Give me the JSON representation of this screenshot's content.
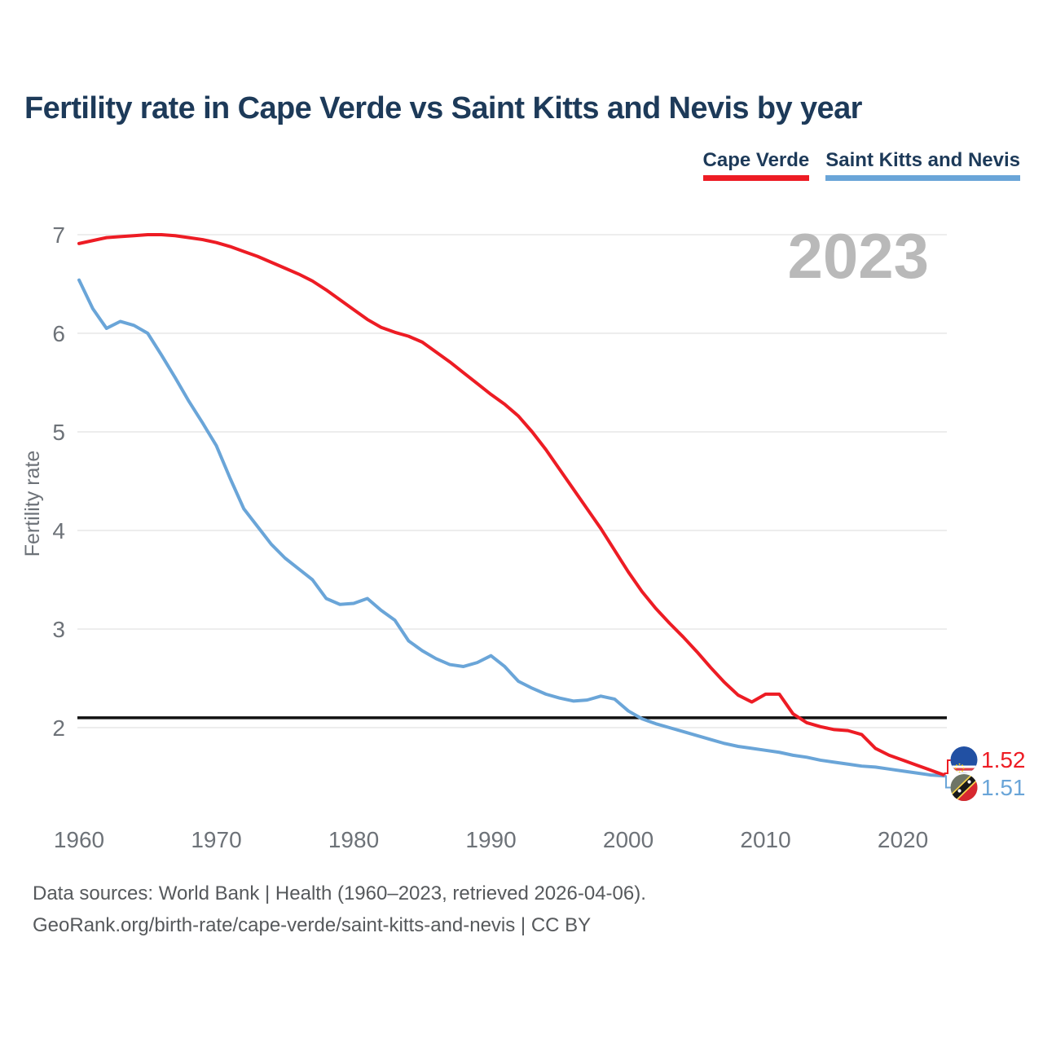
{
  "title": "Fertility rate in Cape Verde vs Saint Kitts and Nevis by year",
  "watermark": "2023",
  "legend": [
    {
      "label": "Cape Verde",
      "color": "#ed1c24"
    },
    {
      "label": "Saint Kitts and Nevis",
      "color": "#6aa5d8"
    }
  ],
  "y_axis": {
    "label": "Fertility rate",
    "ticks": [
      2,
      3,
      4,
      5,
      6,
      7
    ]
  },
  "x_axis": {
    "ticks": [
      1960,
      1970,
      1980,
      1990,
      2000,
      2010,
      2020
    ]
  },
  "reference_line": {
    "value": 2.1,
    "color": "#111111"
  },
  "end_labels": [
    {
      "value": "1.52",
      "color": "#ed1c24",
      "flag": "cape-verde-flag"
    },
    {
      "value": "1.51",
      "color": "#6aa5d8",
      "flag": "saint-kitts-nevis-flag"
    }
  ],
  "source": {
    "line1": "Data sources: World Bank | Health (1960–2023, retrieved 2026-04-06).",
    "line2": "GeoRank.org/birth-rate/cape-verde/saint-kitts-and-nevis | CC BY"
  },
  "chart_data": {
    "type": "line",
    "title": "Fertility rate in Cape Verde vs Saint Kitts and Nevis by year",
    "xlabel": "",
    "ylabel": "Fertility rate",
    "xlim": [
      1960,
      2023
    ],
    "ylim": [
      1.4,
      7.05
    ],
    "grid": "horizontal",
    "legend_position": "top-right",
    "x": [
      1960,
      1961,
      1962,
      1963,
      1964,
      1965,
      1966,
      1967,
      1968,
      1969,
      1970,
      1971,
      1972,
      1973,
      1974,
      1975,
      1976,
      1977,
      1978,
      1979,
      1980,
      1981,
      1982,
      1983,
      1984,
      1985,
      1986,
      1987,
      1988,
      1989,
      1990,
      1991,
      1992,
      1993,
      1994,
      1995,
      1996,
      1997,
      1998,
      1999,
      2000,
      2001,
      2002,
      2003,
      2004,
      2005,
      2006,
      2007,
      2008,
      2009,
      2010,
      2011,
      2012,
      2013,
      2014,
      2015,
      2016,
      2017,
      2018,
      2019,
      2020,
      2021,
      2022,
      2023
    ],
    "series": [
      {
        "name": "Cape Verde",
        "color": "#ed1c24",
        "values": [
          6.91,
          6.94,
          6.97,
          6.98,
          6.99,
          7.0,
          7.0,
          6.99,
          6.97,
          6.95,
          6.92,
          6.88,
          6.83,
          6.78,
          6.72,
          6.66,
          6.6,
          6.53,
          6.44,
          6.34,
          6.24,
          6.14,
          6.06,
          6.01,
          5.97,
          5.91,
          5.81,
          5.71,
          5.6,
          5.49,
          5.38,
          5.28,
          5.16,
          5.0,
          4.82,
          4.62,
          4.42,
          4.22,
          4.02,
          3.8,
          3.58,
          3.38,
          3.21,
          3.06,
          2.92,
          2.77,
          2.61,
          2.46,
          2.33,
          2.26,
          2.34,
          2.34,
          2.14,
          2.05,
          2.01,
          1.98,
          1.97,
          1.93,
          1.79,
          1.72,
          1.67,
          1.62,
          1.57,
          1.52
        ]
      },
      {
        "name": "Saint Kitts and Nevis",
        "color": "#6aa5d8",
        "values": [
          6.54,
          6.25,
          6.05,
          6.12,
          6.08,
          6.0,
          5.78,
          5.55,
          5.31,
          5.09,
          4.86,
          4.53,
          4.22,
          4.04,
          3.86,
          3.72,
          3.61,
          3.5,
          3.31,
          3.25,
          3.26,
          3.31,
          3.19,
          3.09,
          2.88,
          2.78,
          2.7,
          2.64,
          2.62,
          2.66,
          2.73,
          2.62,
          2.47,
          2.4,
          2.34,
          2.3,
          2.27,
          2.28,
          2.32,
          2.29,
          2.17,
          2.09,
          2.04,
          2.0,
          1.96,
          1.92,
          1.88,
          1.84,
          1.81,
          1.79,
          1.77,
          1.75,
          1.72,
          1.7,
          1.67,
          1.65,
          1.63,
          1.61,
          1.6,
          1.58,
          1.56,
          1.54,
          1.52,
          1.51
        ]
      }
    ]
  }
}
